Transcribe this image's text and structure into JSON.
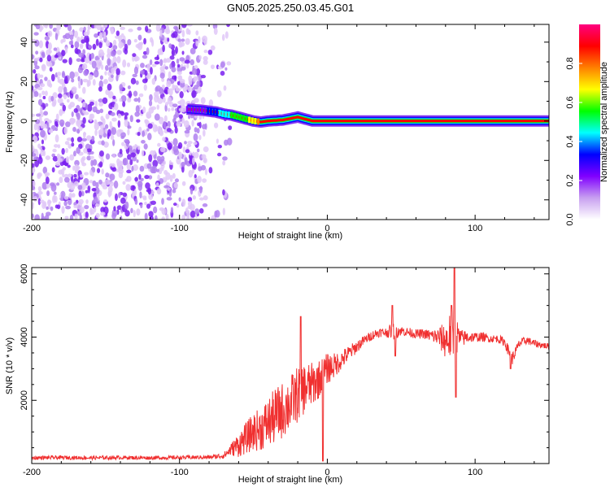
{
  "chart_data": [
    {
      "type": "heatmap",
      "title": "GN05.2025.250.03.45.G01",
      "xlabel": "Height of straight line (km)",
      "ylabel": "Frequency (Hz)",
      "xlim": [
        -200,
        150
      ],
      "ylim": [
        -50,
        49
      ],
      "xticks": [
        -200,
        -100,
        0,
        100
      ],
      "yticks": [
        -40,
        -20,
        0,
        20,
        40
      ],
      "colorbar": {
        "label": "Normalized spectral amplitude",
        "range": [
          0,
          1
        ],
        "ticks": [
          "0.0",
          "0.2",
          "0.4",
          "0.6",
          "0.8"
        ],
        "colors": [
          "#ffffff",
          "#c8a0f0",
          "#8000ff",
          "#0000ff",
          "#00ffff",
          "#00ff00",
          "#ffff00",
          "#ff8000",
          "#ff0000",
          "#ff0080"
        ]
      },
      "noise_region": {
        "x_range": [
          -200,
          -65
        ],
        "amplitude": 0.15
      },
      "ridge": {
        "x": [
          -95,
          -85,
          -75,
          -70,
          -65,
          -60,
          -55,
          -50,
          -45,
          -40,
          -30,
          -20,
          -15,
          -10,
          0,
          50,
          100,
          150
        ],
        "freq": [
          6,
          5.5,
          4.5,
          3.5,
          3,
          2,
          1,
          0,
          -0.5,
          0,
          0.5,
          2,
          1,
          0,
          0,
          0,
          0,
          0
        ],
        "amplitude": [
          0.2,
          0.25,
          0.35,
          0.45,
          0.5,
          0.55,
          0.6,
          0.7,
          0.8,
          0.85,
          0.9,
          0.9,
          0.9,
          0.92,
          0.95,
          0.95,
          0.95,
          0.95
        ]
      }
    },
    {
      "type": "line",
      "xlabel": "Height of straight line (km)",
      "ylabel": "SNR (10 * v/v)",
      "xlim": [
        -200,
        150
      ],
      "ylim": [
        0,
        6200
      ],
      "xticks": [
        -200,
        -100,
        0,
        100
      ],
      "yticks": [
        2000,
        4000,
        6000
      ],
      "series": [
        {
          "name": "SNR",
          "color": "#f03030",
          "x": [
            -200,
            -180,
            -160,
            -140,
            -120,
            -100,
            -80,
            -70,
            -65,
            -60,
            -55,
            -50,
            -45,
            -40,
            -35,
            -30,
            -25,
            -20,
            -15,
            -10,
            -5,
            0,
            5,
            10,
            15,
            20,
            25,
            30,
            35,
            40,
            45,
            50,
            55,
            60,
            65,
            70,
            75,
            80,
            85,
            90,
            95,
            100,
            105,
            110,
            115,
            120,
            125,
            130,
            135,
            140,
            145,
            150
          ],
          "y": [
            180,
            190,
            180,
            190,
            180,
            190,
            200,
            250,
            450,
            600,
            800,
            1000,
            1100,
            1300,
            1500,
            1700,
            1900,
            2200,
            2400,
            2500,
            2700,
            3000,
            3100,
            3300,
            3500,
            3700,
            3900,
            4050,
            4150,
            4150,
            4200,
            4200,
            4150,
            4100,
            4100,
            4050,
            4000,
            3900,
            4100,
            3950,
            4000,
            4000,
            4000,
            3950,
            3950,
            3850,
            3300,
            3800,
            3900,
            3800,
            3750,
            3700
          ],
          "noise": [
            60,
            60,
            60,
            60,
            60,
            60,
            60,
            100,
            200,
            400,
            500,
            600,
            700,
            800,
            900,
            900,
            900,
            900,
            800,
            700,
            600,
            500,
            400,
            300,
            250,
            200,
            150,
            150,
            150,
            150,
            300,
            150,
            150,
            150,
            150,
            200,
            300,
            600,
            900,
            300,
            200,
            150,
            150,
            120,
            120,
            150,
            200,
            150,
            120,
            120,
            100,
            100
          ],
          "peaks": [
            [
              -18,
              4650
            ],
            [
              -3,
              80
            ],
            [
              44,
              5000
            ],
            [
              46,
              3400
            ],
            [
              84,
              5000
            ],
            [
              86,
              6200
            ],
            [
              87,
              2100
            ],
            [
              124,
              3000
            ]
          ]
        }
      ]
    }
  ]
}
